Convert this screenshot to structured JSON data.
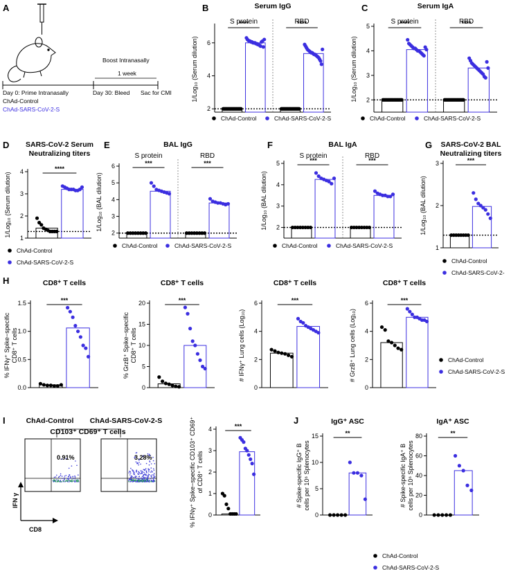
{
  "colors": {
    "control": "#000000",
    "vaccine": "#3b2ee0",
    "flow_dots": "#3a3ad8"
  },
  "groups": {
    "control": "ChAd-Control",
    "vaccine": "ChAd-SARS-CoV-2-S"
  },
  "panel_a": {
    "letter": "A",
    "boost_label": "Boost Intranasally",
    "week_label": "1 week",
    "day0_label": "Day 0: Prime Intranasally",
    "day30_label": "Day 30: Bleed",
    "sac_label": "Sac for CMI",
    "control_label": "ChAd-Control",
    "vaccine_label": "ChAd-SARS-CoV-2-S"
  },
  "panel_i_flow": {
    "letter": "I",
    "control_title": "ChAd-Control",
    "vaccine_title": "ChAd-SARS-CoV-2-S",
    "gate_label": "CD103⁺ CD69⁺ T cells",
    "control_percent": "0.91%",
    "vaccine_percent": "3.28%",
    "x_axis_label": "CD8",
    "y_axis_label": "IFN γ"
  },
  "chart_data": [
    {
      "id": "B",
      "letter": "B",
      "type": "scatter",
      "title": "Serum IgG",
      "ylabel": "1/Log₁₀ (Serum dilution)",
      "ylim": [
        1.8,
        7
      ],
      "yticks": [
        2,
        4,
        6
      ],
      "dashed_line": 2,
      "groups": [
        {
          "label": "S protein",
          "significance": "****",
          "control": [
            2,
            2,
            2,
            2,
            2,
            2,
            2,
            2,
            2,
            2,
            2,
            2,
            2,
            2,
            2,
            2,
            2,
            2,
            2,
            2
          ],
          "vaccine": [
            6.3,
            6.2,
            6.15,
            6.1,
            6.1,
            6.05,
            6.05,
            6.0,
            6.0,
            6.0,
            5.95,
            5.95,
            5.9,
            5.9,
            5.85,
            5.8,
            6.05,
            6.1,
            5.75,
            6.2
          ],
          "control_bar": 2,
          "vaccine_bar": 6.0
        },
        {
          "label": "RBD",
          "significance": "****",
          "control": [
            2,
            2,
            2,
            2,
            2,
            2,
            2,
            2,
            2,
            2,
            2,
            2,
            2,
            2,
            2,
            2,
            2,
            2,
            2,
            2
          ],
          "vaccine": [
            5.9,
            5.8,
            5.7,
            5.6,
            5.55,
            5.5,
            5.45,
            5.4,
            5.4,
            5.35,
            5.3,
            5.3,
            5.25,
            5.2,
            5.15,
            5.1,
            5.0,
            4.9,
            4.7,
            5.6
          ],
          "control_bar": 2,
          "vaccine_bar": 5.35
        }
      ],
      "legend": [
        "ChAd-Control",
        "ChAd-SARS-CoV-2-S"
      ]
    },
    {
      "id": "C",
      "letter": "C",
      "type": "scatter",
      "title": "Serum IgA",
      "ylabel": "1/Log₁₀ (Serum dilution)",
      "ylim": [
        1.5,
        5
      ],
      "yticks": [
        2,
        3,
        4,
        5
      ],
      "dashed_line": 2,
      "groups": [
        {
          "label": "S protein",
          "significance": "****",
          "control": [
            2,
            2,
            2,
            2,
            2,
            2,
            2,
            2,
            2,
            2,
            2,
            2,
            2,
            2,
            2,
            2
          ],
          "vaccine": [
            4.45,
            4.3,
            4.25,
            4.2,
            4.15,
            4.1,
            4.1,
            4.05,
            4.0,
            4.0,
            3.95,
            3.9,
            3.85,
            3.8,
            4.15,
            4.05
          ],
          "control_bar": 2,
          "vaccine_bar": 4.05
        },
        {
          "label": "RBD",
          "significance": "****",
          "control": [
            2,
            2,
            2,
            2,
            2,
            2,
            2,
            2,
            2,
            2,
            2,
            2,
            2,
            2,
            2,
            2
          ],
          "vaccine": [
            3.7,
            3.6,
            3.5,
            3.45,
            3.4,
            3.35,
            3.3,
            3.25,
            3.2,
            3.15,
            3.1,
            3.05,
            2.95,
            2.9,
            3.55,
            3.3
          ],
          "control_bar": 2,
          "vaccine_bar": 3.3
        }
      ],
      "legend": [
        "ChAd-Control",
        "ChAd-SARS-CoV-2-S"
      ]
    },
    {
      "id": "D",
      "letter": "D",
      "type": "scatter",
      "title": "SARS-CoV-2 Serum Neutralizing titers",
      "title_lines": [
        "SARS-CoV-2 Serum",
        "Neutralizing titers"
      ],
      "ylabel": "1/Log₁₀ (Serum dilution)",
      "ylim": [
        1,
        4
      ],
      "yticks": [
        1,
        2,
        3,
        4
      ],
      "dashed_line": 1.3,
      "groups": [
        {
          "label": "",
          "significance": "****",
          "control": [
            1.9,
            1.7,
            1.6,
            1.45,
            1.4,
            1.35,
            1.3,
            1.3,
            1.3,
            1.3
          ],
          "vaccine": [
            3.35,
            3.3,
            3.25,
            3.2,
            3.2,
            3.2,
            3.15,
            3.15,
            3.2,
            3.3
          ],
          "control_bar": 1.45,
          "vaccine_bar": 3.2
        }
      ],
      "legend": [
        "ChAd-Control",
        "ChAd-SARS-CoV-2-S"
      ]
    },
    {
      "id": "E",
      "letter": "E",
      "type": "scatter",
      "title": "BAL IgG",
      "ylabel": "1/Log₁₀ (BAL dilution)",
      "ylim": [
        1.7,
        6
      ],
      "yticks": [
        2,
        3,
        4,
        5,
        6
      ],
      "dashed_line": 2,
      "groups": [
        {
          "label": "S protein",
          "significance": "***",
          "control": [
            2,
            2,
            2,
            2,
            2,
            2,
            2,
            2
          ],
          "vaccine": [
            5.0,
            4.8,
            4.6,
            4.55,
            4.5,
            4.45,
            4.4,
            4.35
          ],
          "control_bar": 2,
          "vaccine_bar": 4.5
        },
        {
          "label": "RBD",
          "significance": "***",
          "control": [
            2,
            2,
            2,
            2,
            2,
            2,
            2,
            2
          ],
          "vaccine": [
            4.05,
            3.9,
            3.85,
            3.8,
            3.8,
            3.75,
            3.7,
            3.75
          ],
          "control_bar": 2,
          "vaccine_bar": 3.8
        }
      ],
      "legend": [
        "ChAd-Control",
        "ChAd-SARS-CoV-2-S"
      ]
    },
    {
      "id": "F",
      "letter": "F",
      "type": "scatter",
      "title": "BAL IgA",
      "ylabel": "1/Log₁₀ (BAL dilution)",
      "ylim": [
        1.5,
        5
      ],
      "yticks": [
        2,
        3,
        4,
        5
      ],
      "dashed_line": 2,
      "groups": [
        {
          "label": "S protein",
          "significance": "***",
          "control": [
            2,
            2,
            2,
            2,
            2,
            2,
            2,
            2
          ],
          "vaccine": [
            4.55,
            4.4,
            4.3,
            4.25,
            4.2,
            4.15,
            4.05,
            4.3
          ],
          "control_bar": 2,
          "vaccine_bar": 4.25
        },
        {
          "label": "RBD",
          "significance": "***",
          "control": [
            2,
            2,
            2,
            2,
            2,
            2,
            2,
            2
          ],
          "vaccine": [
            3.7,
            3.6,
            3.55,
            3.5,
            3.5,
            3.45,
            3.45,
            3.55
          ],
          "control_bar": 2,
          "vaccine_bar": 3.5
        }
      ],
      "legend": [
        "ChAd-Control",
        "ChAd-SARS-CoV-2-S"
      ]
    },
    {
      "id": "G",
      "letter": "G",
      "type": "scatter",
      "title": "SARS-CoV-2 BAL Neutralizing titers",
      "title_lines": [
        "SARS-CoV-2 BAL",
        "Neutralizing titers"
      ],
      "ylabel": "1/Log₁₀ (BAL dilution)",
      "ylim": [
        1,
        3
      ],
      "yticks": [
        1,
        2,
        3
      ],
      "dashed_line": 1.3,
      "groups": [
        {
          "label": "",
          "significance": "***",
          "control": [
            1.3,
            1.3,
            1.3,
            1.3,
            1.3,
            1.3,
            1.3,
            1.3
          ],
          "vaccine": [
            2.3,
            2.15,
            2.05,
            2.0,
            1.95,
            1.9,
            1.8,
            1.7
          ],
          "control_bar": 1.3,
          "vaccine_bar": 1.98
        }
      ],
      "legend": [
        "ChAd-Control",
        "ChAd-SARS-CoV-2-"
      ]
    },
    {
      "id": "H1",
      "letter": "H",
      "type": "scatter",
      "title": "CD8⁺ T cells",
      "ylabel": "% IFNγ⁺ Spike−specific CD8⁺ T cells",
      "ylim": [
        0,
        1.5
      ],
      "yticks": [
        0.0,
        0.5,
        1.0,
        1.5
      ],
      "tick_decimals": 1,
      "groups": [
        {
          "label": "",
          "significance": "***",
          "control": [
            0.07,
            0.05,
            0.04,
            0.04,
            0.03,
            0.03,
            0.05
          ],
          "vaccine": [
            1.42,
            1.35,
            1.25,
            1.1,
            1.0,
            0.9,
            0.75,
            0.7,
            0.55
          ],
          "control_bar": 0.05,
          "vaccine_bar": 1.06
        }
      ]
    },
    {
      "id": "H2",
      "type": "scatter",
      "title": "CD8⁺ T cells",
      "ylabel": "% GrzB⁺ Spike−specific CD8⁺ T cells",
      "ylim": [
        0,
        20
      ],
      "yticks": [
        0,
        5,
        10,
        15,
        20
      ],
      "groups": [
        {
          "label": "",
          "significance": "***",
          "control": [
            2.5,
            1.5,
            1.0,
            0.8,
            0.5,
            0.3,
            0.2
          ],
          "vaccine": [
            19,
            17.5,
            14,
            11,
            10,
            8,
            6.5,
            5,
            4.5
          ],
          "control_bar": 0.9,
          "vaccine_bar": 10
        }
      ]
    },
    {
      "id": "H3",
      "type": "scatter",
      "title": "CD8⁺ T cells",
      "ylabel": "# IFNγ⁺ Lung cells (Log₁₀)",
      "ylim": [
        0,
        6
      ],
      "yticks": [
        0,
        2,
        4,
        6
      ],
      "groups": [
        {
          "label": "",
          "significance": "***",
          "control": [
            2.7,
            2.6,
            2.5,
            2.45,
            2.4,
            2.3,
            2.2
          ],
          "vaccine": [
            4.9,
            4.7,
            4.6,
            4.4,
            4.3,
            4.2,
            4.1,
            4.0,
            3.9
          ],
          "control_bar": 2.45,
          "vaccine_bar": 4.35
        }
      ]
    },
    {
      "id": "H4",
      "type": "scatter",
      "title": "CD8⁺ T cells",
      "ylabel": "# GrzB⁺ Lung cells (Log₁₀)",
      "ylim": [
        0,
        6
      ],
      "yticks": [
        0,
        2,
        4,
        6
      ],
      "groups": [
        {
          "label": "",
          "significance": "***",
          "control": [
            4.3,
            4.1,
            3.3,
            3.2,
            3.0,
            2.8,
            2.7
          ],
          "vaccine": [
            5.6,
            5.4,
            5.2,
            5.0,
            5.0,
            4.9,
            4.8,
            4.8,
            4.7
          ],
          "control_bar": 3.2,
          "vaccine_bar": 5.0
        }
      ],
      "legend": [
        "ChAd-Control",
        "ChAd-SARS-CoV-2-S"
      ]
    },
    {
      "id": "I2",
      "type": "scatter",
      "title": "",
      "ylabel": "% IFNγ⁺ Spike−specific CD103⁺ CD69⁺ of CD8⁺ T cells",
      "ylim": [
        0,
        4
      ],
      "yticks": [
        0,
        1,
        2,
        3,
        4
      ],
      "groups": [
        {
          "label": "",
          "significance": "***",
          "control": [
            1.0,
            0.9,
            0.5,
            0.3,
            0.05,
            0.05,
            0.05,
            0.05
          ],
          "vaccine": [
            3.6,
            3.5,
            3.4,
            3.1,
            3.0,
            2.8,
            2.6,
            2.4,
            1.9
          ],
          "control_bar": 0.05,
          "vaccine_bar": 2.95
        }
      ]
    },
    {
      "id": "J1",
      "letter": "J",
      "type": "scatter",
      "title": "IgG⁺ ASC",
      "ylabel": "# Spike-specific IgG⁺ B cells per 10⁶ Splenocytes",
      "ylim": [
        0,
        15
      ],
      "yticks": [
        0,
        5,
        10,
        15
      ],
      "groups": [
        {
          "label": "",
          "significance": "**",
          "control": [
            0,
            0,
            0,
            0,
            0
          ],
          "vaccine": [
            10,
            8,
            8,
            7.5,
            3
          ],
          "control_bar": 0,
          "vaccine_bar": 8
        }
      ]
    },
    {
      "id": "J2",
      "type": "scatter",
      "title": "IgA⁺ ASC",
      "ylabel": "# Spike-specific IgA⁺ B cells per 10⁶ Splenocytes",
      "ylim": [
        0,
        80
      ],
      "yticks": [
        0,
        20,
        40,
        60,
        80
      ],
      "groups": [
        {
          "label": "",
          "significance": "**",
          "control": [
            0,
            0,
            0,
            0,
            0
          ],
          "vaccine": [
            60,
            50,
            45,
            30,
            25
          ],
          "control_bar": 0,
          "vaccine_bar": 45
        }
      ],
      "legend": [
        "ChAd-Control",
        "ChAd-SARS-CoV-2-S"
      ]
    }
  ]
}
